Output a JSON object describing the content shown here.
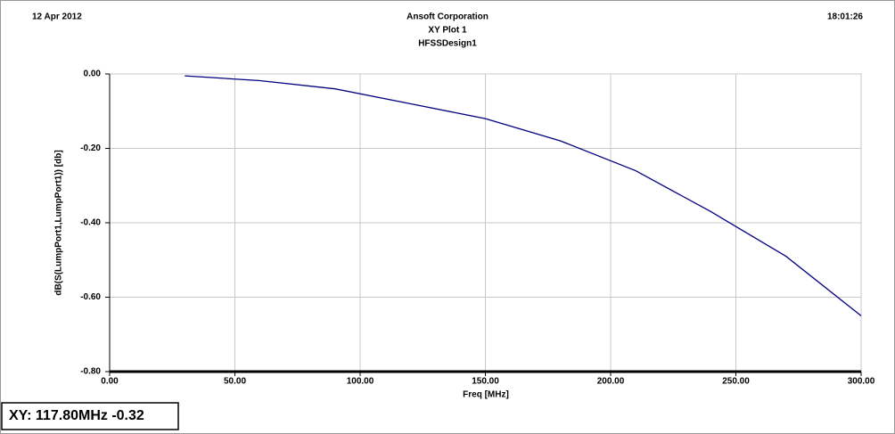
{
  "chart_data": {
    "type": "line",
    "date": "12 Apr 2012",
    "company": "Ansoft Corporation",
    "title": "XY Plot 1",
    "subtitle": "HFSSDesign1",
    "time": "18:01:26",
    "x_label": "Freq [MHz]",
    "y_label": "dB(S(LumpPort1,LumpPort1)) [db]",
    "x": [
      30,
      60,
      90,
      120,
      150,
      180,
      210,
      240,
      270,
      300
    ],
    "series": [
      {
        "name": "dB(S(LumpPort1,LumpPort1))",
        "color": "#000080",
        "values": [
          -0.005,
          -0.018,
          -0.04,
          -0.08,
          -0.12,
          -0.18,
          -0.26,
          -0.37,
          -0.49,
          -0.65
        ]
      }
    ],
    "xlim": [
      0,
      300
    ],
    "xticks": [
      {
        "value": 0,
        "label": "0.00"
      },
      {
        "value": 50,
        "label": "50.00"
      },
      {
        "value": 100,
        "label": "100.00"
      },
      {
        "value": 150,
        "label": "150.00"
      },
      {
        "value": 200,
        "label": "200.00"
      },
      {
        "value": 250,
        "label": "250.00"
      },
      {
        "value": 300,
        "label": "300.00"
      }
    ],
    "ylim": [
      -0.8,
      0
    ],
    "yticks": [
      {
        "value": -0.8,
        "label": "-0.80"
      },
      {
        "value": -0.6,
        "label": "-0.60"
      },
      {
        "value": -0.4,
        "label": "-0.40"
      },
      {
        "value": -0.2,
        "label": "-0.20"
      },
      {
        "value": 0,
        "label": "0.00"
      }
    ],
    "grid": true,
    "marker_readout": "XY: 117.80MHz -0.32"
  }
}
